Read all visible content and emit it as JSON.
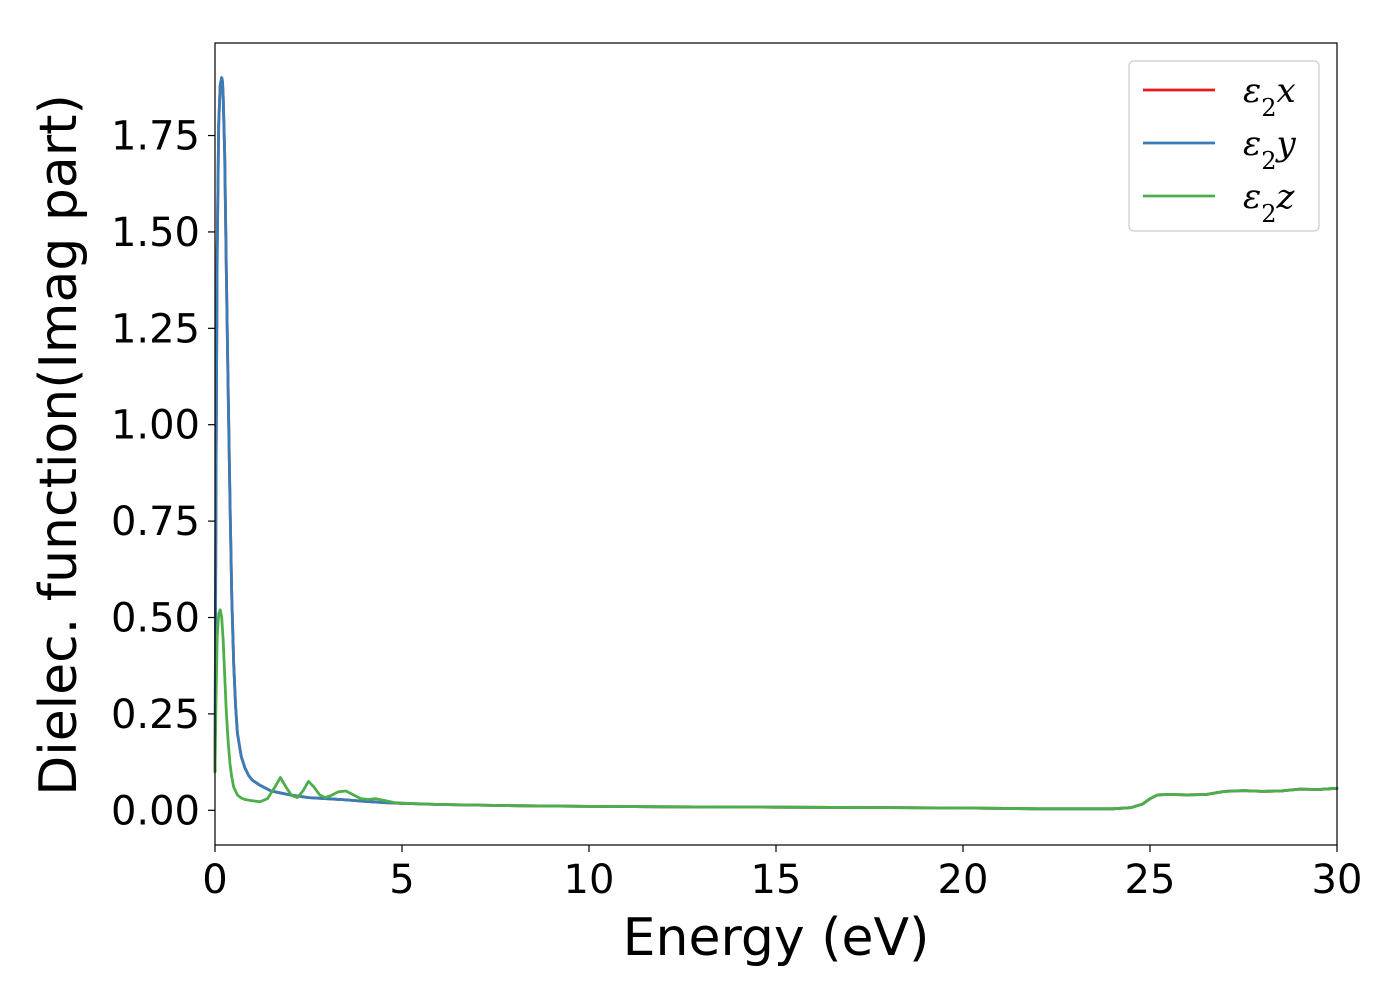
{
  "chart_data": {
    "type": "line",
    "xlabel": "Energy (eV)",
    "ylabel": "Dielec. function(Imag part)",
    "xlim": [
      0,
      30
    ],
    "ylim": [
      -0.09,
      1.99
    ],
    "xticks": [
      0,
      5,
      10,
      15,
      20,
      25,
      30
    ],
    "xtick_labels": [
      "0",
      "5",
      "10",
      "15",
      "20",
      "25",
      "30"
    ],
    "yticks": [
      0.0,
      0.25,
      0.5,
      0.75,
      1.0,
      1.25,
      1.5,
      1.75
    ],
    "ytick_labels": [
      "0.00",
      "0.25",
      "0.50",
      "0.75",
      "1.00",
      "1.25",
      "1.50",
      "1.75"
    ],
    "grid": false,
    "legend_position": "top-right",
    "series": [
      {
        "name": "ε₂x",
        "legend": {
          "base": "ε",
          "sub": "2",
          "suffix": "x"
        },
        "color": "#e41a1c",
        "x": [
          0,
          0.03,
          0.06,
          0.1,
          0.14,
          0.18,
          0.2,
          0.22,
          0.26,
          0.3,
          0.35,
          0.4,
          0.45,
          0.5,
          0.55,
          0.6,
          0.7,
          0.8,
          0.9,
          1.0,
          1.2,
          1.5,
          2.0,
          2.5,
          3.0,
          3.5,
          4.0,
          4.5,
          5.0,
          6.0,
          8.0,
          10.0,
          12.0,
          15.0,
          18.0,
          20.0,
          22.0,
          24.0,
          24.5,
          24.8,
          25.0,
          25.2,
          25.5,
          26.0,
          26.5,
          27.0,
          27.5,
          28.0,
          28.5,
          29.0,
          29.5,
          30.0
        ],
        "y": [
          0.1,
          0.9,
          1.45,
          1.78,
          1.88,
          1.9,
          1.89,
          1.85,
          1.7,
          1.42,
          1.1,
          0.8,
          0.55,
          0.38,
          0.27,
          0.2,
          0.14,
          0.11,
          0.09,
          0.078,
          0.065,
          0.05,
          0.04,
          0.033,
          0.03,
          0.027,
          0.023,
          0.02,
          0.018,
          0.015,
          0.012,
          0.01,
          0.009,
          0.008,
          0.007,
          0.006,
          0.004,
          0.004,
          0.007,
          0.016,
          0.03,
          0.04,
          0.041,
          0.04,
          0.041,
          0.049,
          0.051,
          0.049,
          0.05,
          0.055,
          0.054,
          0.057
        ]
      },
      {
        "name": "ε₂y",
        "legend": {
          "base": "ε",
          "sub": "2",
          "suffix": "y"
        },
        "color": "#377eb8",
        "x": [
          0,
          0.03,
          0.06,
          0.1,
          0.14,
          0.18,
          0.2,
          0.22,
          0.26,
          0.3,
          0.35,
          0.4,
          0.45,
          0.5,
          0.55,
          0.6,
          0.7,
          0.8,
          0.9,
          1.0,
          1.2,
          1.5,
          2.0,
          2.5,
          3.0,
          3.5,
          4.0,
          4.5,
          5.0,
          6.0,
          8.0,
          10.0,
          12.0,
          15.0,
          18.0,
          20.0,
          22.0,
          24.0,
          24.5,
          24.8,
          25.0,
          25.2,
          25.5,
          26.0,
          26.5,
          27.0,
          27.5,
          28.0,
          28.5,
          29.0,
          29.5,
          30.0
        ],
        "y": [
          0.1,
          0.9,
          1.45,
          1.78,
          1.88,
          1.9,
          1.89,
          1.85,
          1.7,
          1.42,
          1.1,
          0.8,
          0.55,
          0.38,
          0.27,
          0.2,
          0.14,
          0.11,
          0.09,
          0.078,
          0.065,
          0.05,
          0.04,
          0.033,
          0.03,
          0.027,
          0.023,
          0.02,
          0.018,
          0.015,
          0.012,
          0.01,
          0.009,
          0.008,
          0.007,
          0.006,
          0.004,
          0.004,
          0.007,
          0.016,
          0.03,
          0.04,
          0.041,
          0.04,
          0.041,
          0.049,
          0.051,
          0.049,
          0.05,
          0.055,
          0.054,
          0.057
        ]
      },
      {
        "name": "ε₂z",
        "legend": {
          "base": "ε",
          "sub": "2",
          "suffix": "z"
        },
        "color": "#4daf4a",
        "x": [
          0,
          0.03,
          0.06,
          0.1,
          0.14,
          0.18,
          0.22,
          0.26,
          0.3,
          0.35,
          0.4,
          0.45,
          0.5,
          0.6,
          0.7,
          0.8,
          1.0,
          1.2,
          1.4,
          1.6,
          1.75,
          1.9,
          2.05,
          2.2,
          2.35,
          2.5,
          2.65,
          2.8,
          2.95,
          3.1,
          3.3,
          3.5,
          3.7,
          3.9,
          4.1,
          4.3,
          4.5,
          4.8,
          5.2,
          6.0,
          8.0,
          10.0,
          12.0,
          15.0,
          18.0,
          20.0,
          22.0,
          24.0,
          24.5,
          24.8,
          25.0,
          25.2,
          25.5,
          26.0,
          26.5,
          27.0,
          27.5,
          28.0,
          28.5,
          29.0,
          29.5,
          30.0
        ],
        "y": [
          0.1,
          0.3,
          0.45,
          0.51,
          0.52,
          0.5,
          0.44,
          0.35,
          0.26,
          0.18,
          0.12,
          0.085,
          0.06,
          0.04,
          0.032,
          0.028,
          0.025,
          0.022,
          0.03,
          0.06,
          0.085,
          0.06,
          0.038,
          0.033,
          0.05,
          0.075,
          0.06,
          0.04,
          0.033,
          0.038,
          0.048,
          0.05,
          0.04,
          0.03,
          0.028,
          0.03,
          0.026,
          0.02,
          0.018,
          0.015,
          0.012,
          0.01,
          0.009,
          0.008,
          0.007,
          0.006,
          0.004,
          0.004,
          0.007,
          0.016,
          0.03,
          0.04,
          0.041,
          0.04,
          0.041,
          0.049,
          0.051,
          0.049,
          0.05,
          0.055,
          0.054,
          0.057
        ]
      }
    ]
  }
}
